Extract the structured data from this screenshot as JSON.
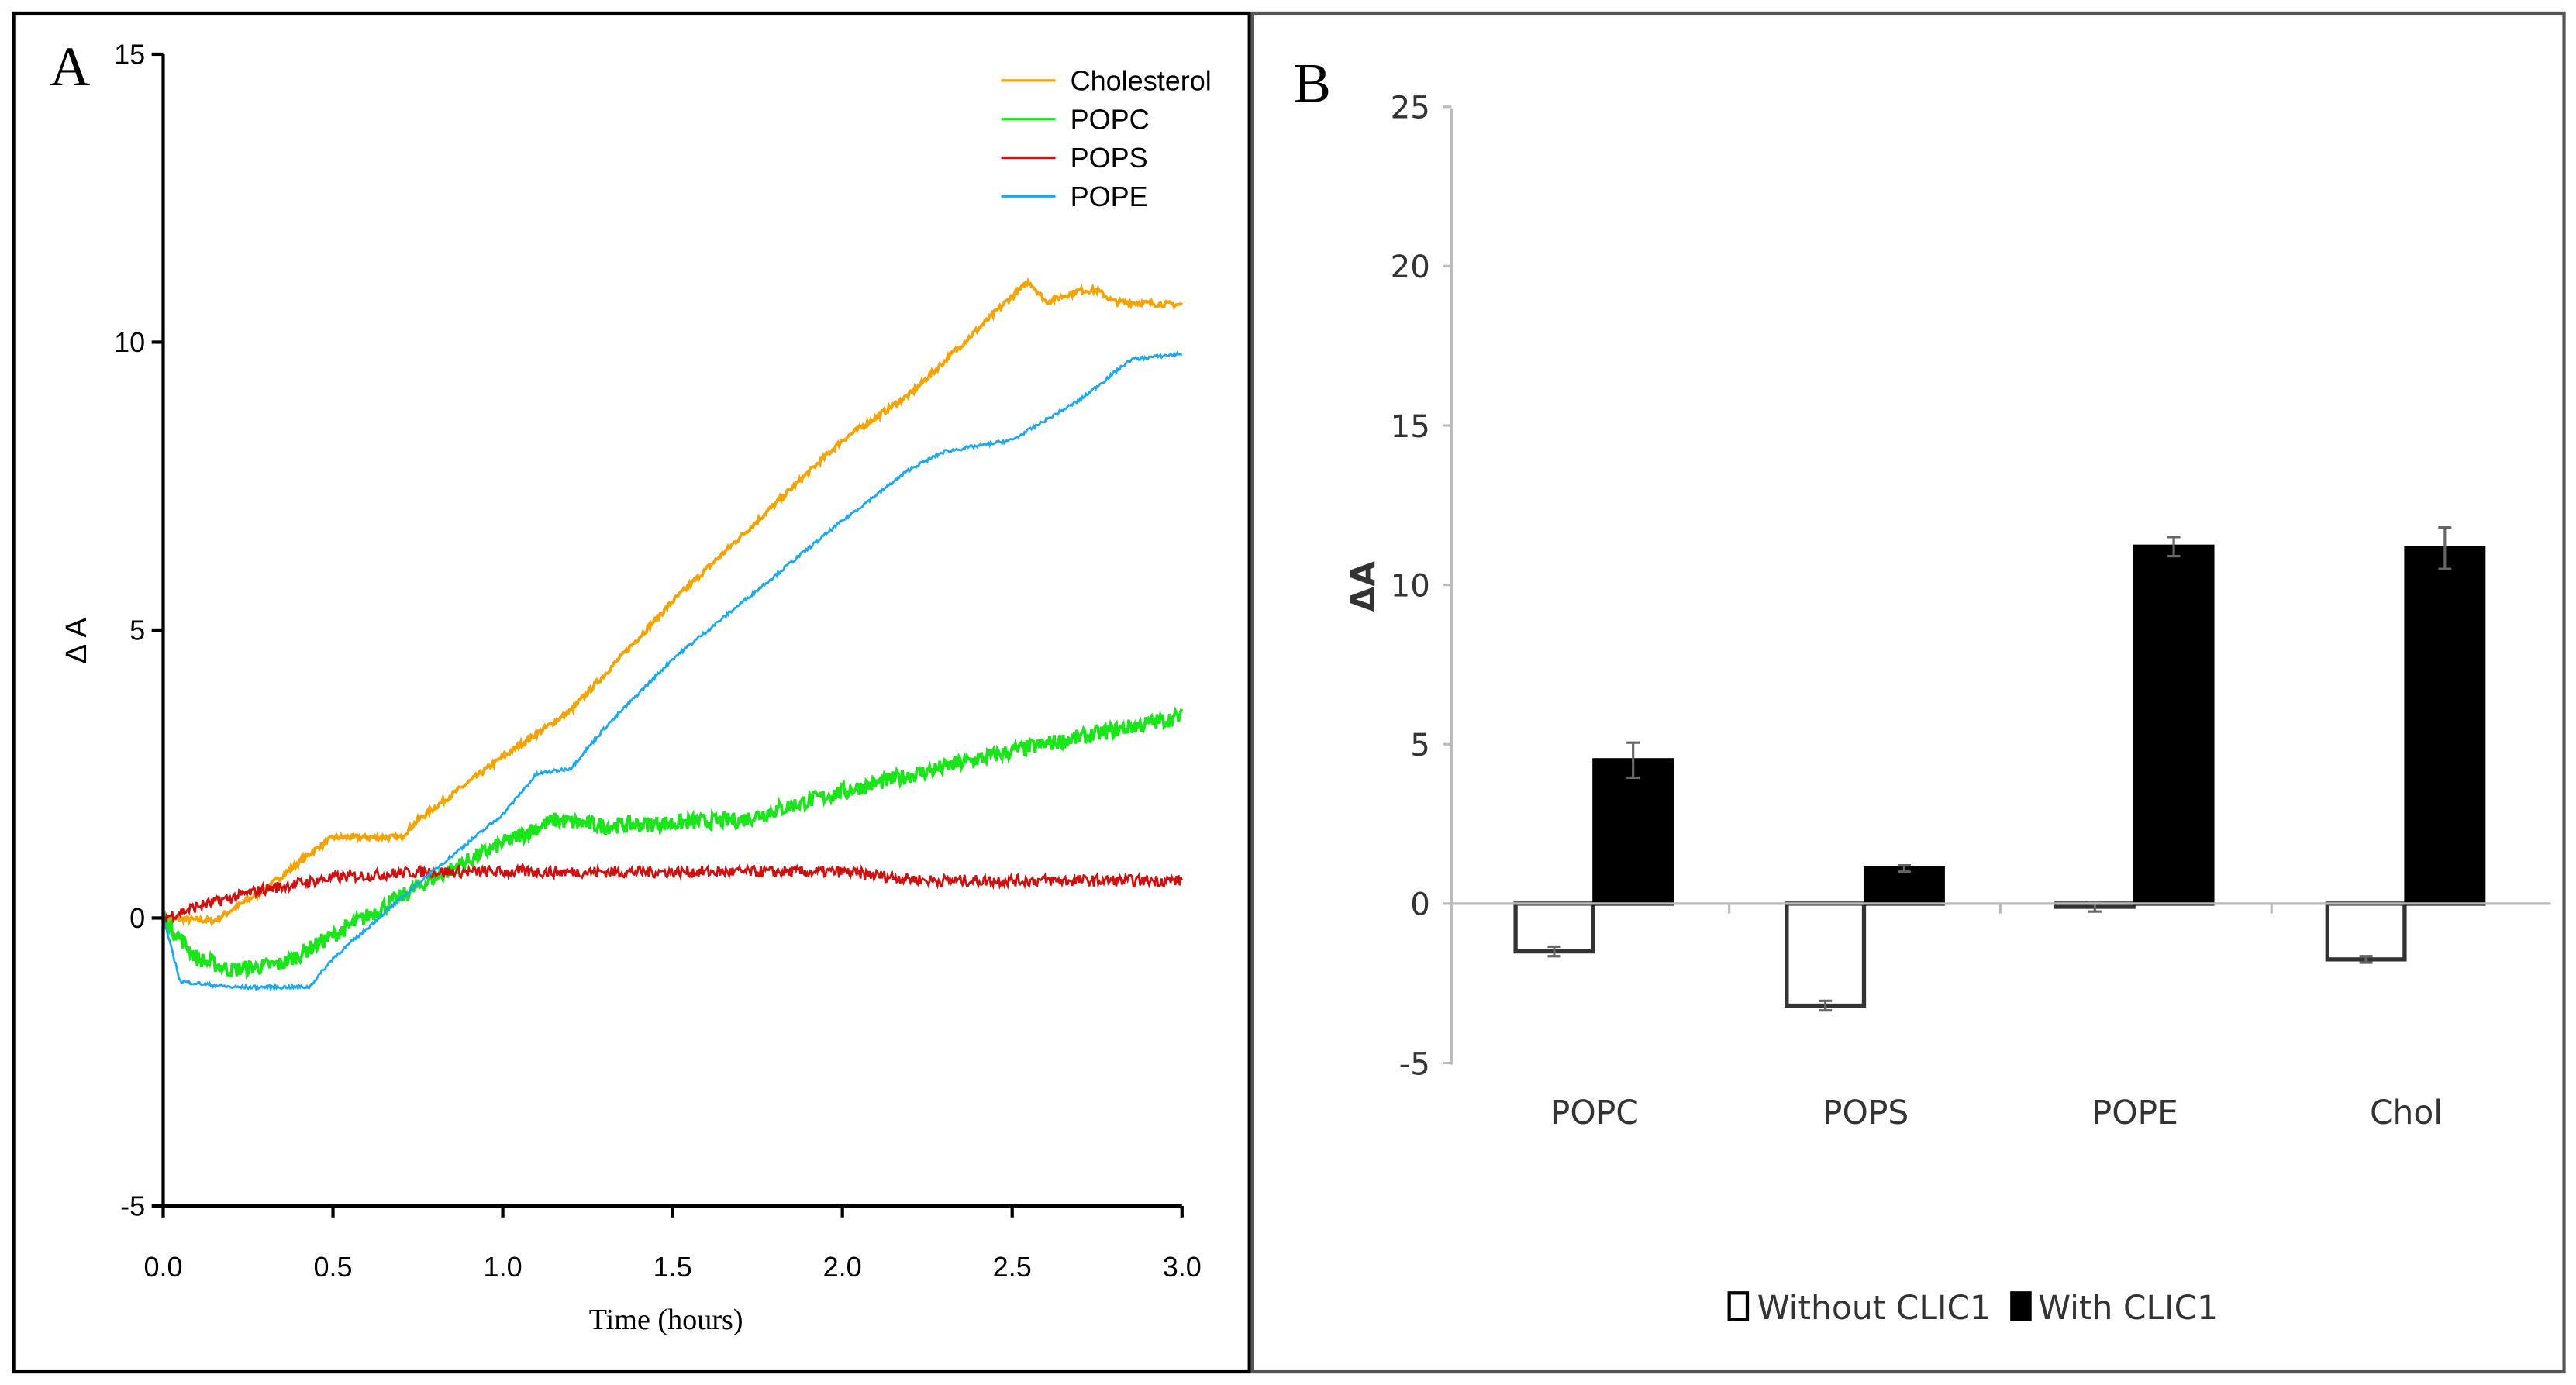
{
  "chart_data": [
    {
      "type": "line",
      "panel_label": "A",
      "title": "",
      "xlabel": "Time (hours)",
      "ylabel": "Δ A",
      "xlim": [
        0,
        3
      ],
      "ylim": [
        -5,
        15
      ],
      "xticks": [
        "0.0",
        "0.5",
        "1.0",
        "1.5",
        "2.0",
        "2.5",
        "3.0"
      ],
      "yticks": [
        "-5",
        "0",
        "5",
        "10",
        "15"
      ],
      "legend_position": "top-right",
      "series": [
        {
          "name": "Cholesterol",
          "color": "#f5a300",
          "noise": 0.05,
          "points": [
            [
              0,
              0
            ],
            [
              0.15,
              -0.05
            ],
            [
              0.3,
              0.5
            ],
            [
              0.45,
              1.2
            ],
            [
              0.5,
              1.4
            ],
            [
              0.7,
              1.4
            ],
            [
              0.75,
              1.7
            ],
            [
              1.0,
              2.8
            ],
            [
              1.2,
              3.6
            ],
            [
              1.5,
              5.5
            ],
            [
              2.0,
              8.3
            ],
            [
              2.2,
              9.1
            ],
            [
              2.5,
              10.8
            ],
            [
              2.55,
              11.05
            ],
            [
              2.6,
              10.7
            ],
            [
              2.7,
              10.9
            ],
            [
              2.75,
              10.9
            ],
            [
              2.8,
              10.7
            ],
            [
              3.0,
              10.65
            ]
          ]
        },
        {
          "name": "POPC",
          "color": "#19e619",
          "noise": 0.14,
          "points": [
            [
              0,
              0
            ],
            [
              0.1,
              -0.7
            ],
            [
              0.2,
              -0.9
            ],
            [
              0.35,
              -0.8
            ],
            [
              0.5,
              -0.3
            ],
            [
              0.8,
              0.7
            ],
            [
              1.0,
              1.3
            ],
            [
              1.15,
              1.7
            ],
            [
              1.3,
              1.6
            ],
            [
              1.7,
              1.7
            ],
            [
              2.0,
              2.2
            ],
            [
              2.5,
              2.9
            ],
            [
              3.0,
              3.5
            ]
          ]
        },
        {
          "name": "POPS",
          "color": "#d01010",
          "noise": 0.1,
          "points": [
            [
              0,
              0
            ],
            [
              0.1,
              0.2
            ],
            [
              0.3,
              0.5
            ],
            [
              0.5,
              0.7
            ],
            [
              0.75,
              0.8
            ],
            [
              2.0,
              0.8
            ],
            [
              2.25,
              0.65
            ],
            [
              3.0,
              0.65
            ]
          ]
        },
        {
          "name": "POPE",
          "color": "#1aa8f0",
          "noise": 0.03,
          "points": [
            [
              0,
              0
            ],
            [
              0.05,
              -1.1
            ],
            [
              0.2,
              -1.2
            ],
            [
              0.43,
              -1.2
            ],
            [
              0.5,
              -0.7
            ],
            [
              0.75,
              0.6
            ],
            [
              1.0,
              1.8
            ],
            [
              1.1,
              2.5
            ],
            [
              1.2,
              2.6
            ],
            [
              1.3,
              3.3
            ],
            [
              1.5,
              4.5
            ],
            [
              2.0,
              6.9
            ],
            [
              2.2,
              7.8
            ],
            [
              2.3,
              8.1
            ],
            [
              2.5,
              8.3
            ],
            [
              2.7,
              9.0
            ],
            [
              2.85,
              9.7
            ],
            [
              3.0,
              9.8
            ]
          ]
        }
      ]
    },
    {
      "type": "bar",
      "panel_label": "B",
      "title": "",
      "xlabel": "",
      "ylabel": "ΔA",
      "ylim": [
        -5,
        25
      ],
      "yticks": [
        "-5",
        "0",
        "5",
        "10",
        "15",
        "20",
        "25"
      ],
      "categories": [
        "POPC",
        "POPS",
        "POPE",
        "Chol"
      ],
      "legend_position": "bottom",
      "series": [
        {
          "name": "Without CLIC1",
          "fill": "#ffffff",
          "values": [
            -1.5,
            -3.2,
            -0.1,
            -1.75
          ],
          "errors": [
            0.15,
            0.15,
            0.15,
            0.1
          ]
        },
        {
          "name": "With CLIC1",
          "fill": "#000000",
          "values": [
            4.5,
            1.1,
            11.2,
            11.15
          ],
          "errors": [
            0.55,
            0.1,
            0.3,
            0.65
          ]
        }
      ]
    }
  ]
}
